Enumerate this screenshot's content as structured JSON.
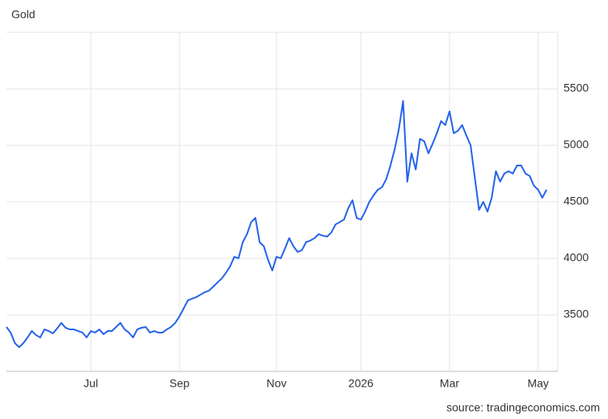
{
  "chart_data": {
    "type": "line",
    "title": "Gold",
    "source": "source: tradingeconomics.com",
    "categories": [
      null,
      null,
      null,
      null,
      null,
      null,
      null,
      null,
      null,
      null,
      null,
      null,
      null,
      null,
      null,
      null,
      null,
      null,
      null,
      null,
      "Jul",
      null,
      null,
      null,
      null,
      null,
      null,
      null,
      null,
      null,
      null,
      null,
      null,
      null,
      null,
      null,
      null,
      null,
      null,
      null,
      null,
      "Sep",
      null,
      null,
      null,
      null,
      null,
      null,
      null,
      null,
      null,
      null,
      null,
      null,
      null,
      null,
      null,
      null,
      null,
      null,
      null,
      null,
      null,
      null,
      "Nov",
      null,
      null,
      null,
      null,
      null,
      null,
      null,
      null,
      null,
      null,
      null,
      null,
      null,
      null,
      null,
      null,
      null,
      null,
      null,
      "2026",
      null,
      null,
      null,
      null,
      null,
      null,
      null,
      null,
      null,
      null,
      null,
      null,
      null,
      null,
      null,
      null,
      null,
      null,
      null,
      null,
      "Mar",
      null,
      null,
      null,
      null,
      null,
      null,
      null,
      null,
      null,
      null,
      null,
      null,
      null,
      null,
      null,
      null,
      null,
      null,
      null,
      null,
      "May",
      null,
      null
    ],
    "series": [
      {
        "name": "Gold",
        "color": "#2563eb",
        "values": [
          3393,
          3343,
          3250,
          3214,
          3250,
          3300,
          3357,
          3321,
          3300,
          3371,
          3357,
          3336,
          3379,
          3429,
          3386,
          3371,
          3371,
          3357,
          3343,
          3300,
          3357,
          3343,
          3371,
          3329,
          3357,
          3357,
          3393,
          3429,
          3371,
          3343,
          3300,
          3371,
          3386,
          3393,
          3343,
          3357,
          3343,
          3343,
          3371,
          3393,
          3429,
          3486,
          3557,
          3629,
          3643,
          3657,
          3679,
          3700,
          3714,
          3750,
          3786,
          3821,
          3871,
          3929,
          4014,
          4000,
          4143,
          4214,
          4321,
          4357,
          4143,
          4107,
          3986,
          3893,
          4014,
          4000,
          4086,
          4179,
          4107,
          4057,
          4071,
          4143,
          4157,
          4179,
          4214,
          4200,
          4193,
          4229,
          4300,
          4321,
          4343,
          4443,
          4514,
          4357,
          4343,
          4414,
          4500,
          4557,
          4607,
          4629,
          4700,
          4821,
          4964,
          5143,
          5393,
          4679,
          4929,
          4786,
          5057,
          5036,
          4929,
          5014,
          5107,
          5214,
          5179,
          5300,
          5107,
          5129,
          5179,
          5086,
          5000,
          4714,
          4429,
          4500,
          4414,
          4536,
          4771,
          4679,
          4750,
          4771,
          4750,
          4821,
          4821,
          4750,
          4729,
          4643,
          4607,
          4536,
          4607
        ]
      }
    ],
    "ylim": [
      3000,
      6000
    ],
    "yticks": [
      3500,
      4000,
      4500,
      5000,
      5500
    ],
    "grid": true
  }
}
